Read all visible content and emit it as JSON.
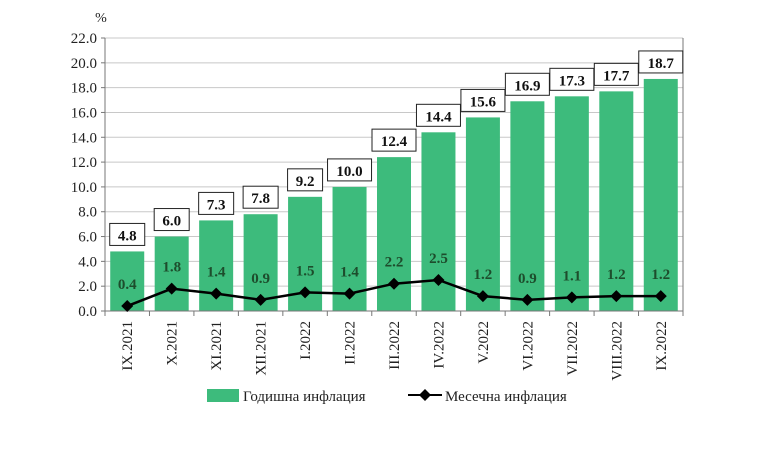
{
  "chart_data": {
    "type": "bar+line",
    "ylabel": "%",
    "ylim": [
      0,
      22
    ],
    "yticks": [
      "0.0",
      "2.0",
      "4.0",
      "6.0",
      "8.0",
      "10.0",
      "12.0",
      "14.0",
      "16.0",
      "18.0",
      "20.0",
      "22.0"
    ],
    "grid": true,
    "legend_placement": "bottom",
    "categories": [
      "IX.2021",
      "X.2021",
      "XI.2021",
      "XII.2021",
      "I.2022",
      "II.2022",
      "III.2022",
      "IV.2022",
      "V.2022",
      "VI.2022",
      "VII.2022",
      "VIII.2022",
      "IX.2022"
    ],
    "series": [
      {
        "name": "Годишна инфлация",
        "type": "bar",
        "color": "#3dbb7c",
        "values": [
          4.8,
          6.0,
          7.3,
          7.8,
          9.2,
          10.0,
          12.4,
          14.4,
          15.6,
          16.9,
          17.3,
          17.7,
          18.7
        ]
      },
      {
        "name": "Месечна инфлация",
        "type": "line",
        "color": "#000000",
        "marker": "diamond",
        "values": [
          0.4,
          1.8,
          1.4,
          0.9,
          1.5,
          1.4,
          2.2,
          2.5,
          1.2,
          0.9,
          1.1,
          1.2,
          1.2
        ]
      }
    ]
  }
}
